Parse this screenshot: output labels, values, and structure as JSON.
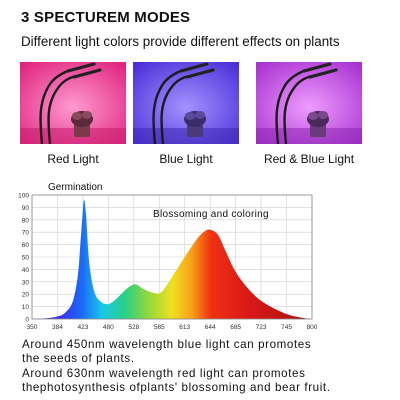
{
  "header": {
    "title": "3 SPECTUREM MODES",
    "subtitle": "Different light colors provide different effects on plants"
  },
  "modes": [
    {
      "label": "Red Light",
      "bg": "#e82a8f",
      "glow": "#ff7ac2"
    },
    {
      "label": "Blue Light",
      "bg": "#5a3fe0",
      "glow": "#9a8cff"
    },
    {
      "label": "Red & Blue Light",
      "bg": "#b540d8",
      "glow": "#e890ff"
    }
  ],
  "chart_data": {
    "type": "area",
    "x_ticks": [
      "350",
      "384",
      "423",
      "480",
      "528",
      "565",
      "613",
      "644",
      "685",
      "723",
      "745",
      "800"
    ],
    "y_ticks": [
      "0",
      "10",
      "20",
      "30",
      "40",
      "50",
      "60",
      "70",
      "80",
      "90",
      "100"
    ],
    "ylim": [
      0,
      100
    ],
    "grid": true,
    "annotations": [
      "Germination",
      "Blossoming and coloring"
    ],
    "points": [
      [
        0,
        0
      ],
      [
        0.5,
        0.5
      ],
      [
        1.0,
        2
      ],
      [
        1.3,
        5
      ],
      [
        1.6,
        14
      ],
      [
        1.8,
        35
      ],
      [
        1.9,
        60
      ],
      [
        2.0,
        88
      ],
      [
        2.05,
        96
      ],
      [
        2.12,
        85
      ],
      [
        2.25,
        45
      ],
      [
        2.45,
        22
      ],
      [
        2.7,
        14
      ],
      [
        3.0,
        12
      ],
      [
        3.3,
        16
      ],
      [
        3.7,
        24
      ],
      [
        4.05,
        28
      ],
      [
        4.4,
        24
      ],
      [
        4.8,
        21
      ],
      [
        5.1,
        22
      ],
      [
        5.5,
        34
      ],
      [
        6.0,
        50
      ],
      [
        6.5,
        65
      ],
      [
        6.8,
        71
      ],
      [
        7.0,
        72
      ],
      [
        7.3,
        68
      ],
      [
        7.6,
        55
      ],
      [
        8.0,
        38
      ],
      [
        8.6,
        22
      ],
      [
        9.2,
        12
      ],
      [
        10.0,
        4
      ],
      [
        10.6,
        1
      ],
      [
        11.0,
        0
      ]
    ]
  },
  "descriptions": [
    "Around 450nm wavelength blue light can promotes",
    "the seeds of plants.",
    "Around 630nm wavelength red light can promotes",
    "thephotosynthesis ofplants' blossoming and bear fruit."
  ]
}
